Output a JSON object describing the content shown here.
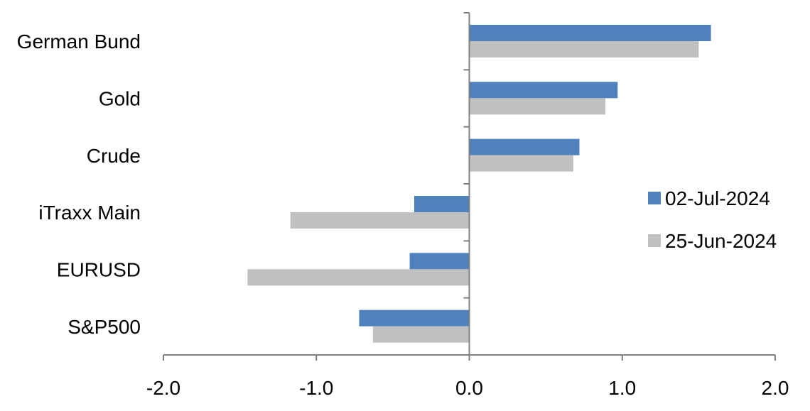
{
  "chart_data": {
    "type": "bar",
    "orientation": "horizontal",
    "categories": [
      "German Bund",
      "Gold",
      "Crude",
      "iTraxx Main",
      "EURUSD",
      "S&P500"
    ],
    "series": [
      {
        "name": "02-Jul-2024",
        "color": "#4f81bd",
        "values": [
          1.58,
          0.97,
          0.72,
          -0.36,
          -0.39,
          -0.72
        ]
      },
      {
        "name": "25-Jun-2024",
        "color": "#c0c0c0",
        "values": [
          1.5,
          0.89,
          0.68,
          -1.17,
          -1.45,
          -0.63
        ]
      }
    ],
    "xlim": [
      -2.0,
      2.0
    ],
    "xticks": [
      "-2.0",
      "-1.0",
      "0.0",
      "1.0",
      "2.0"
    ],
    "xtick_values": [
      -2,
      -1,
      0,
      1,
      2
    ],
    "grid": false,
    "legend_position": "right"
  }
}
